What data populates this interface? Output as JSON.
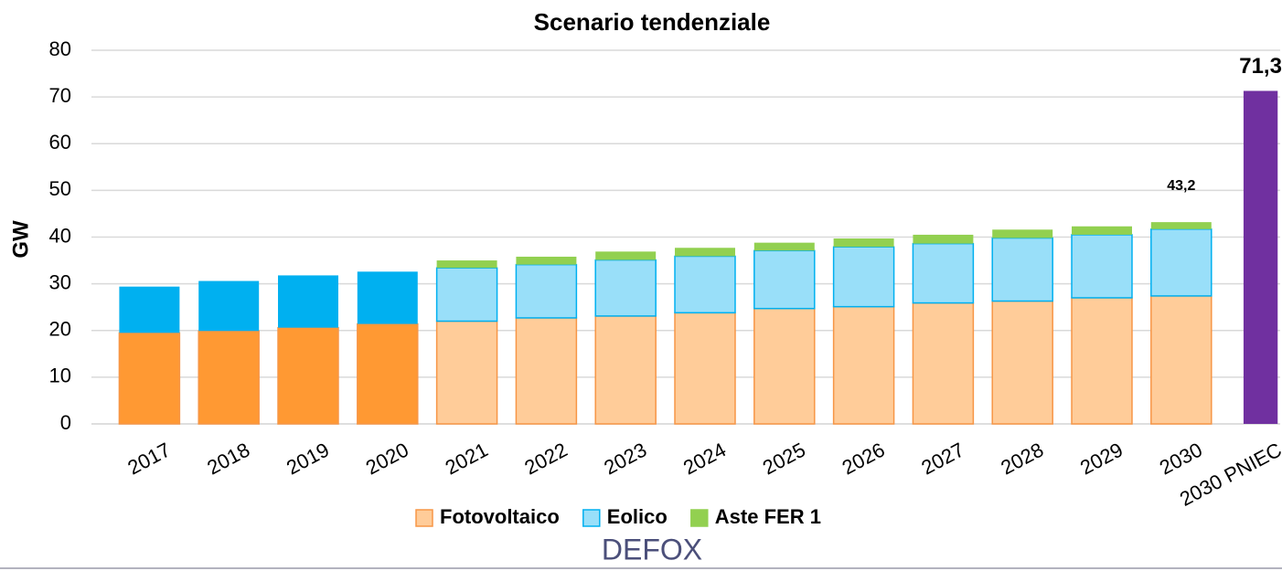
{
  "chart_data": {
    "type": "bar",
    "stacked": true,
    "title": "Scenario tendenziale",
    "ylabel": "GW",
    "categories": [
      "2017",
      "2018",
      "2019",
      "2020",
      "2021",
      "2022",
      "2023",
      "2024",
      "2025",
      "2026",
      "2027",
      "2028",
      "2029",
      "2030",
      "2030 PNIEC"
    ],
    "series": [
      {
        "name": "Fotovoltaico",
        "color": "#ffcc99",
        "edgecolor": "#f79646",
        "colors": [
          "#ff9933",
          "#ff9933",
          "#ff9933",
          "#ff9933",
          "#ffcc99",
          "#ffcc99",
          "#ffcc99",
          "#ffcc99",
          "#ffcc99",
          "#ffcc99",
          "#ffcc99",
          "#ffcc99",
          "#ffcc99",
          "#ffcc99",
          null
        ],
        "values": [
          19.5,
          19.9,
          20.6,
          21.4,
          22.0,
          22.7,
          23.1,
          23.8,
          24.7,
          25.1,
          25.9,
          26.3,
          27.0,
          27.4,
          null
        ]
      },
      {
        "name": "Eolico",
        "color": "#99dff9",
        "edgecolor": "#00b0f0",
        "colors": [
          "#00b0f0",
          "#00b0f0",
          "#00b0f0",
          "#00b0f0",
          "#99dff9",
          "#99dff9",
          "#99dff9",
          "#99dff9",
          "#99dff9",
          "#99dff9",
          "#99dff9",
          "#99dff9",
          "#99dff9",
          "#99dff9",
          null
        ],
        "values": [
          9.9,
          10.7,
          11.2,
          11.2,
          11.4,
          11.4,
          12.0,
          12.1,
          12.4,
          12.8,
          12.7,
          13.5,
          13.5,
          14.3,
          null
        ]
      },
      {
        "name": "Aste FER 1",
        "color": "#92d050",
        "edgecolor": "#92d050",
        "values": [
          null,
          null,
          null,
          null,
          1.6,
          1.7,
          1.8,
          1.8,
          1.7,
          1.8,
          1.9,
          1.8,
          1.8,
          1.5,
          null
        ]
      },
      {
        "color": "#7030a0",
        "stacked": false,
        "values": [
          null,
          null,
          null,
          null,
          null,
          null,
          null,
          null,
          null,
          null,
          null,
          null,
          null,
          null,
          71.3
        ],
        "value_labels": [
          null,
          null,
          null,
          null,
          null,
          null,
          null,
          null,
          null,
          null,
          null,
          null,
          null,
          null,
          "71,3"
        ]
      }
    ],
    "annotations": [
      {
        "category": 13,
        "value": 43.2,
        "label": "43,2"
      }
    ],
    "ylim": [
      0,
      80
    ],
    "yticks": [
      0,
      10,
      20,
      30,
      40,
      50,
      60,
      70,
      80
    ],
    "grid": true,
    "legend": "bottom",
    "watermark": "DEFOX"
  }
}
